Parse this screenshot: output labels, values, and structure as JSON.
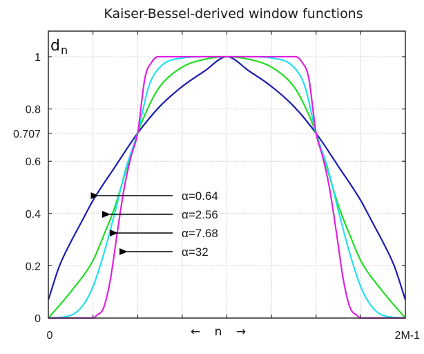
{
  "chart_data": {
    "type": "line",
    "title": "Kaiser-Bessel-derived window functions",
    "ylabel": "d",
    "ylabel_subscript": "n",
    "xlabel": "n",
    "xlabel_left_arrow": "←",
    "xlabel_right_arrow": "→",
    "x_unit": "fraction of window length (0 = first sample, 1 = 2M-1)",
    "xlim": [
      0,
      1
    ],
    "ylim": [
      0,
      1.1
    ],
    "x_tick_labels": [
      {
        "value": 0,
        "label": "0"
      },
      {
        "value": 1,
        "label": "2M-1"
      }
    ],
    "x_gridlines": [
      0.125,
      0.25,
      0.375,
      0.5,
      0.625,
      0.75,
      0.875
    ],
    "y_ticks": [
      {
        "value": 0,
        "label": "0"
      },
      {
        "value": 0.2,
        "label": "0.2"
      },
      {
        "value": 0.4,
        "label": "0.4"
      },
      {
        "value": 0.6,
        "label": "0.6"
      },
      {
        "value": 0.707,
        "label": "0.707"
      },
      {
        "value": 0.8,
        "label": "0.8"
      },
      {
        "value": 1,
        "label": "1"
      }
    ],
    "grid": true,
    "legend": "arrows pointing to curves, left-center",
    "series": [
      {
        "name": "α=0.64",
        "color": "#1c1cb0",
        "x": [
          0,
          0.03125,
          0.0625,
          0.09375,
          0.125,
          0.1875,
          0.25,
          0.3125,
          0.375,
          0.4375,
          0.5,
          0.5625,
          0.625,
          0.6875,
          0.75,
          0.8125,
          0.875,
          0.90625,
          0.9375,
          0.96875,
          1
        ],
        "y": [
          0.07,
          0.2,
          0.29,
          0.37,
          0.45,
          0.58,
          0.707,
          0.81,
          0.886,
          0.945,
          1.0,
          0.945,
          0.886,
          0.81,
          0.707,
          0.58,
          0.45,
          0.37,
          0.29,
          0.2,
          0.07
        ]
      },
      {
        "name": "α=2.56",
        "color": "#22dd22",
        "x": [
          0,
          0.0625,
          0.125,
          0.15625,
          0.1875,
          0.21875,
          0.25,
          0.28125,
          0.3125,
          0.375,
          0.4375,
          0.5,
          0.5625,
          0.625,
          0.6875,
          0.71875,
          0.75,
          0.78125,
          0.8125,
          0.84375,
          0.875,
          0.9375,
          1
        ],
        "y": [
          0.0,
          0.1,
          0.22,
          0.32,
          0.43,
          0.57,
          0.707,
          0.81,
          0.886,
          0.96,
          0.99,
          1.0,
          0.99,
          0.96,
          0.886,
          0.81,
          0.707,
          0.57,
          0.43,
          0.32,
          0.22,
          0.1,
          0.0
        ]
      },
      {
        "name": "α=7.68",
        "color": "#22e0ee",
        "x": [
          0,
          0.0625,
          0.0975,
          0.125,
          0.15625,
          0.1875,
          0.21875,
          0.25,
          0.28125,
          0.3125,
          0.375,
          0.4375,
          0.5,
          0.5625,
          0.625,
          0.6875,
          0.71875,
          0.75,
          0.78125,
          0.8125,
          0.84375,
          0.875,
          0.9025,
          0.9375,
          1
        ],
        "y": [
          0.0,
          0.01,
          0.05,
          0.12,
          0.25,
          0.41,
          0.58,
          0.707,
          0.886,
          0.96,
          0.995,
          1.0,
          1.0,
          1.0,
          0.995,
          0.96,
          0.886,
          0.707,
          0.58,
          0.41,
          0.25,
          0.12,
          0.05,
          0.01,
          0.0
        ]
      },
      {
        "name": "α=32",
        "color": "#e020e0",
        "x": [
          0,
          0.125,
          0.1354,
          0.155,
          0.1741,
          0.1934,
          0.2128,
          0.2321,
          0.25,
          0.2708,
          0.29,
          0.3075,
          0.5,
          0.6925,
          0.71,
          0.7292,
          0.75,
          0.7679,
          0.7872,
          0.8066,
          0.8259,
          0.845,
          0.8646,
          0.875,
          1
        ],
        "y": [
          0.0,
          0.0,
          0.01,
          0.04,
          0.15,
          0.33,
          0.5,
          0.62,
          0.707,
          0.92,
          0.98,
          1.0,
          1.0,
          1.0,
          0.98,
          0.92,
          0.707,
          0.62,
          0.5,
          0.33,
          0.15,
          0.04,
          0.01,
          0.0,
          0.0
        ]
      }
    ],
    "annotations": [
      {
        "text": "α=0.64",
        "series": "α=0.64",
        "arrow_to": {
          "x": 0.1379,
          "y": 0.47
        }
      },
      {
        "text": "α=2.56",
        "series": "α=2.56",
        "arrow_to": {
          "x": 0.1702,
          "y": 0.4
        }
      },
      {
        "text": "α=7.68",
        "series": "α=7.68",
        "arrow_to": {
          "x": 0.1915,
          "y": 0.32
        }
      },
      {
        "text": "α=32",
        "series": "α=32",
        "arrow_to": {
          "x": 0.2186,
          "y": 0.25
        }
      }
    ]
  }
}
